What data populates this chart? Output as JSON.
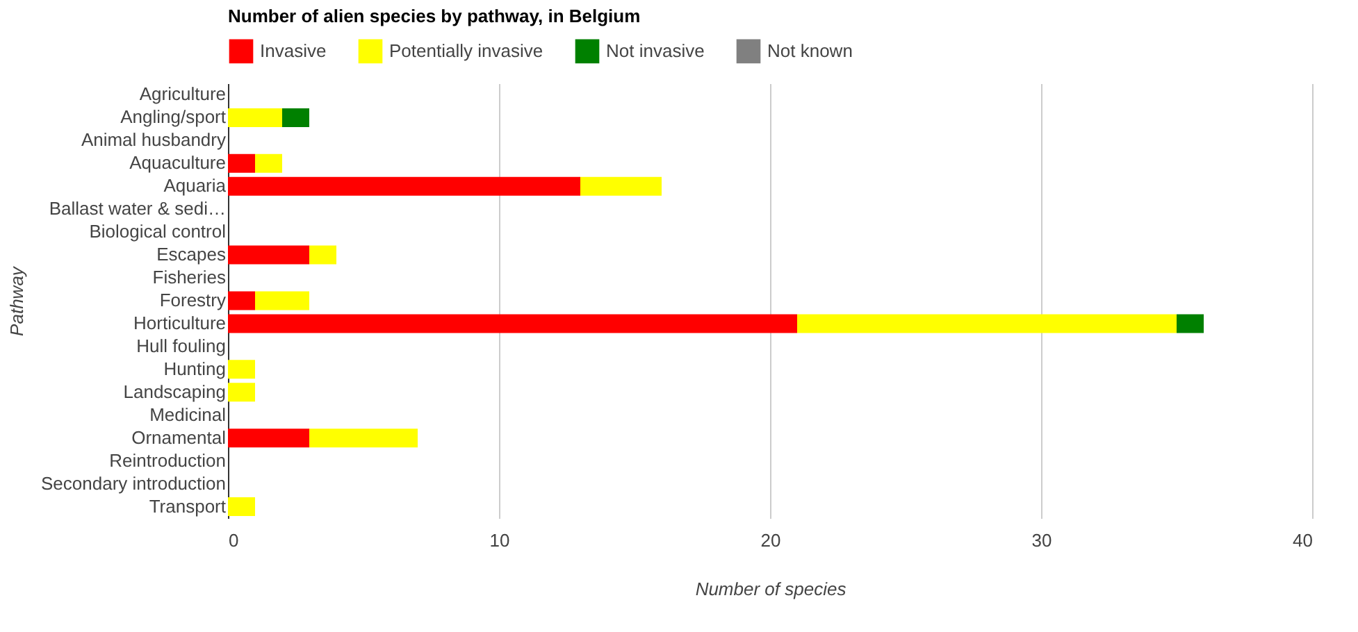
{
  "chart_data": {
    "type": "bar",
    "orientation": "horizontal",
    "stacked": true,
    "title": "Number of alien species by pathway, in Belgium",
    "xlabel": "Number of species",
    "ylabel": "Pathway",
    "categories": [
      "Agriculture",
      "Angling/sport",
      "Animal husbandry",
      "Aquaculture",
      "Aquaria",
      "Ballast water & sedi…",
      "Biological control",
      "Escapes",
      "Fisheries",
      "Forestry",
      "Horticulture",
      "Hull fouling",
      "Hunting",
      "Landscaping",
      "Medicinal",
      "Ornamental",
      "Reintroduction",
      "Secondary introduction",
      "Transport"
    ],
    "series": [
      {
        "name": "Invasive",
        "color": "#ff0000",
        "values": [
          null,
          null,
          null,
          1,
          13,
          null,
          null,
          3,
          null,
          1,
          21,
          null,
          null,
          null,
          null,
          3,
          null,
          null,
          null
        ]
      },
      {
        "name": "Potentially invasive",
        "color": "#ffff00",
        "values": [
          null,
          2,
          null,
          1,
          3,
          null,
          null,
          1,
          null,
          2,
          14,
          null,
          1,
          1,
          null,
          4,
          null,
          null,
          1
        ]
      },
      {
        "name": "Not invasive",
        "color": "#008000",
        "values": [
          null,
          1,
          null,
          null,
          null,
          null,
          null,
          null,
          null,
          null,
          1,
          null,
          null,
          null,
          null,
          null,
          null,
          null,
          null
        ]
      },
      {
        "name": "Not known",
        "color": "#808080",
        "values": [
          null,
          null,
          null,
          null,
          null,
          null,
          null,
          null,
          null,
          null,
          null,
          null,
          null,
          null,
          null,
          null,
          null,
          null,
          null
        ]
      }
    ],
    "xlim": [
      0,
      40
    ],
    "xticks": [
      0,
      10,
      20,
      30,
      40
    ],
    "grid": "x",
    "legend": "top"
  }
}
